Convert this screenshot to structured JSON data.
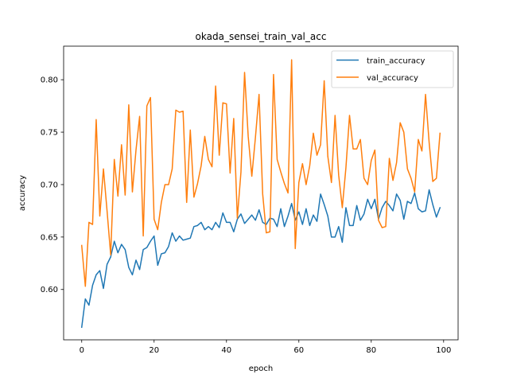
{
  "chart_data": {
    "type": "line",
    "title": "okada_sensei_train_val_acc",
    "xlabel": "epoch",
    "ylabel": "accuracy",
    "xlim": [
      -5,
      104
    ],
    "ylim": [
      0.552,
      0.832
    ],
    "xticks": [
      0,
      20,
      40,
      60,
      80,
      100
    ],
    "xtick_labels": [
      "0",
      "20",
      "40",
      "60",
      "80",
      "100"
    ],
    "yticks": [
      0.6,
      0.65,
      0.7,
      0.75,
      0.8
    ],
    "ytick_labels": [
      "0.60",
      "0.65",
      "0.70",
      "0.75",
      "0.80"
    ],
    "grid": false,
    "legend_position": "top-right",
    "x": [
      0,
      1,
      2,
      3,
      4,
      5,
      6,
      7,
      8,
      9,
      10,
      11,
      12,
      13,
      14,
      15,
      16,
      17,
      18,
      19,
      20,
      21,
      22,
      23,
      24,
      25,
      26,
      27,
      28,
      29,
      30,
      31,
      32,
      33,
      34,
      35,
      36,
      37,
      38,
      39,
      40,
      41,
      42,
      43,
      44,
      45,
      46,
      47,
      48,
      49,
      50,
      51,
      52,
      53,
      54,
      55,
      56,
      57,
      58,
      59,
      60,
      61,
      62,
      63,
      64,
      65,
      66,
      67,
      68,
      69,
      70,
      71,
      72,
      73,
      74,
      75,
      76,
      77,
      78,
      79,
      80,
      81,
      82,
      83,
      84,
      85,
      86,
      87,
      88,
      89,
      90,
      91,
      92,
      93,
      94,
      95,
      96,
      97,
      98,
      99
    ],
    "series": [
      {
        "name": "train_accuracy",
        "color": "#1f77b4",
        "values": [
          0.564,
          0.591,
          0.585,
          0.604,
          0.614,
          0.618,
          0.601,
          0.624,
          0.631,
          0.646,
          0.635,
          0.643,
          0.638,
          0.621,
          0.614,
          0.628,
          0.619,
          0.638,
          0.64,
          0.646,
          0.651,
          0.623,
          0.634,
          0.635,
          0.641,
          0.654,
          0.646,
          0.651,
          0.647,
          0.648,
          0.649,
          0.66,
          0.661,
          0.664,
          0.657,
          0.66,
          0.657,
          0.664,
          0.659,
          0.673,
          0.664,
          0.664,
          0.655,
          0.667,
          0.672,
          0.663,
          0.667,
          0.671,
          0.666,
          0.676,
          0.664,
          0.662,
          0.668,
          0.667,
          0.66,
          0.677,
          0.66,
          0.67,
          0.682,
          0.666,
          0.674,
          0.662,
          0.677,
          0.661,
          0.671,
          0.665,
          0.691,
          0.681,
          0.67,
          0.65,
          0.65,
          0.66,
          0.645,
          0.678,
          0.661,
          0.661,
          0.68,
          0.666,
          0.672,
          0.686,
          0.677,
          0.686,
          0.667,
          0.678,
          0.684,
          0.68,
          0.675,
          0.691,
          0.685,
          0.667,
          0.684,
          0.682,
          0.692,
          0.677,
          0.674,
          0.675,
          0.695,
          0.681,
          0.669,
          0.678
        ]
      },
      {
        "name": "val_accuracy",
        "color": "#ff7f0e",
        "values": [
          0.642,
          0.603,
          0.664,
          0.662,
          0.762,
          0.67,
          0.715,
          0.675,
          0.633,
          0.724,
          0.689,
          0.738,
          0.69,
          0.776,
          0.693,
          0.733,
          0.765,
          0.651,
          0.775,
          0.783,
          0.667,
          0.657,
          0.683,
          0.7,
          0.7,
          0.715,
          0.771,
          0.769,
          0.77,
          0.683,
          0.752,
          0.688,
          0.701,
          0.718,
          0.746,
          0.724,
          0.717,
          0.794,
          0.728,
          0.778,
          0.777,
          0.711,
          0.763,
          0.668,
          0.712,
          0.807,
          0.746,
          0.708,
          0.745,
          0.786,
          0.691,
          0.654,
          0.655,
          0.805,
          0.724,
          0.712,
          0.701,
          0.692,
          0.819,
          0.639,
          0.702,
          0.72,
          0.7,
          0.718,
          0.749,
          0.728,
          0.738,
          0.799,
          0.727,
          0.702,
          0.766,
          0.709,
          0.678,
          0.716,
          0.766,
          0.734,
          0.734,
          0.743,
          0.706,
          0.7,
          0.723,
          0.733,
          0.666,
          0.659,
          0.66,
          0.725,
          0.704,
          0.721,
          0.759,
          0.75,
          0.715,
          0.706,
          0.693,
          0.743,
          0.732,
          0.786,
          0.74,
          0.703,
          0.706,
          0.749
        ]
      }
    ]
  }
}
